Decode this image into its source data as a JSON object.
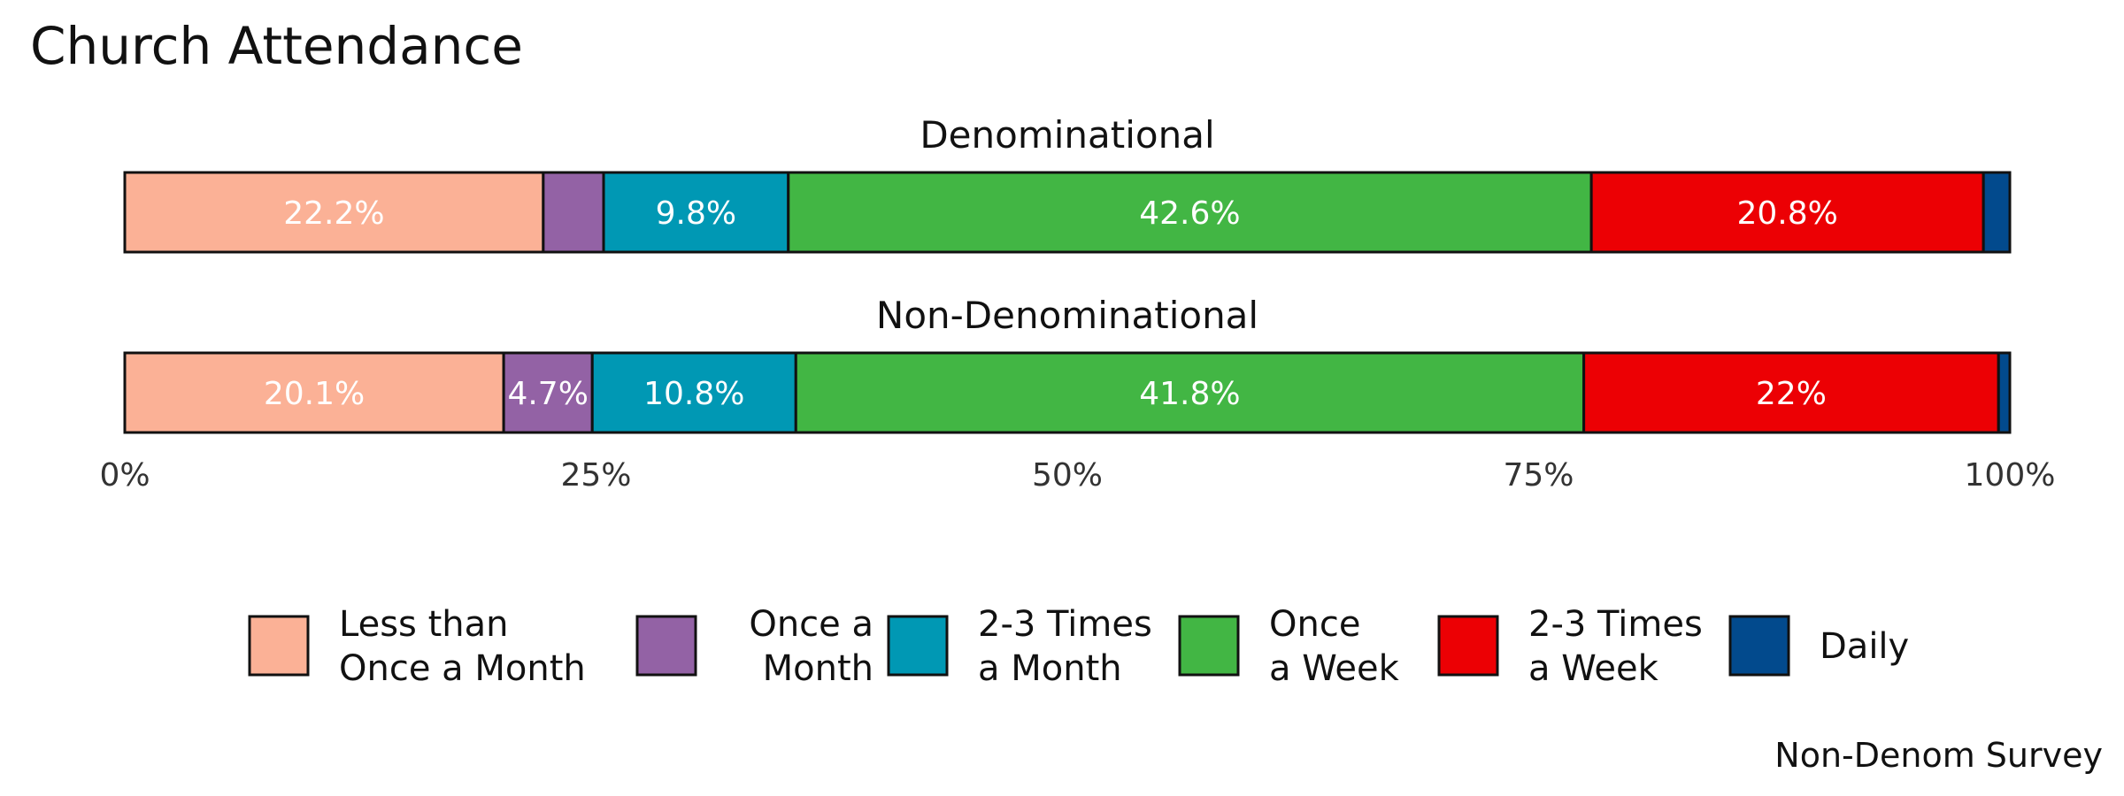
{
  "chart_data": {
    "type": "bar",
    "orientation": "horizontal",
    "stacked": true,
    "title": "Church Attendance",
    "caption": "Non-Denom Survey",
    "xlim": [
      0,
      100
    ],
    "x_ticks": [
      "0%",
      "25%",
      "50%",
      "75%",
      "100%"
    ],
    "grid": false,
    "legend_position": "bottom",
    "groups": [
      {
        "name": "Denominational",
        "segments": [
          {
            "category": "Less than Once a Month",
            "value": 22.2,
            "label": "22.2%"
          },
          {
            "category": "Once a Month",
            "value": 3.2,
            "label": ""
          },
          {
            "category": "2-3 Times a Month",
            "value": 9.8,
            "label": "9.8%"
          },
          {
            "category": "Once a Week",
            "value": 42.6,
            "label": "42.6%"
          },
          {
            "category": "2-3 Times a Week",
            "value": 20.8,
            "label": "20.8%"
          },
          {
            "category": "Daily",
            "value": 1.4,
            "label": ""
          }
        ]
      },
      {
        "name": "Non-Denominational",
        "segments": [
          {
            "category": "Less than Once a Month",
            "value": 20.1,
            "label": "20.1%"
          },
          {
            "category": "Once a Month",
            "value": 4.7,
            "label": "4.7%"
          },
          {
            "category": "2-3 Times a Month",
            "value": 10.8,
            "label": "10.8%"
          },
          {
            "category": "Once a Week",
            "value": 41.8,
            "label": "41.8%"
          },
          {
            "category": "2-3 Times a Week",
            "value": 22.0,
            "label": "22%"
          },
          {
            "category": "Daily",
            "value": 0.6,
            "label": ""
          }
        ]
      }
    ],
    "legend": [
      {
        "category": "Less than Once a Month",
        "lines": [
          "Less than",
          "Once a Month"
        ],
        "color": "#fbb196",
        "align": "start"
      },
      {
        "category": "Once a Month",
        "lines": [
          "Once a",
          "Month"
        ],
        "color": "#9362a5",
        "align": "end"
      },
      {
        "category": "2-3 Times a Month",
        "lines": [
          "2-3 Times",
          "a Month"
        ],
        "color": "#0098b4",
        "align": "start"
      },
      {
        "category": "Once a Week",
        "lines": [
          "Once",
          "a Week"
        ],
        "color": "#42b644",
        "align": "start"
      },
      {
        "category": "2-3 Times a Week",
        "lines": [
          "2-3 Times",
          "a Week"
        ],
        "color": "#ec0004",
        "align": "start"
      },
      {
        "category": "Daily",
        "lines": [
          "Daily"
        ],
        "color": "#024a8d",
        "align": "start"
      }
    ]
  }
}
